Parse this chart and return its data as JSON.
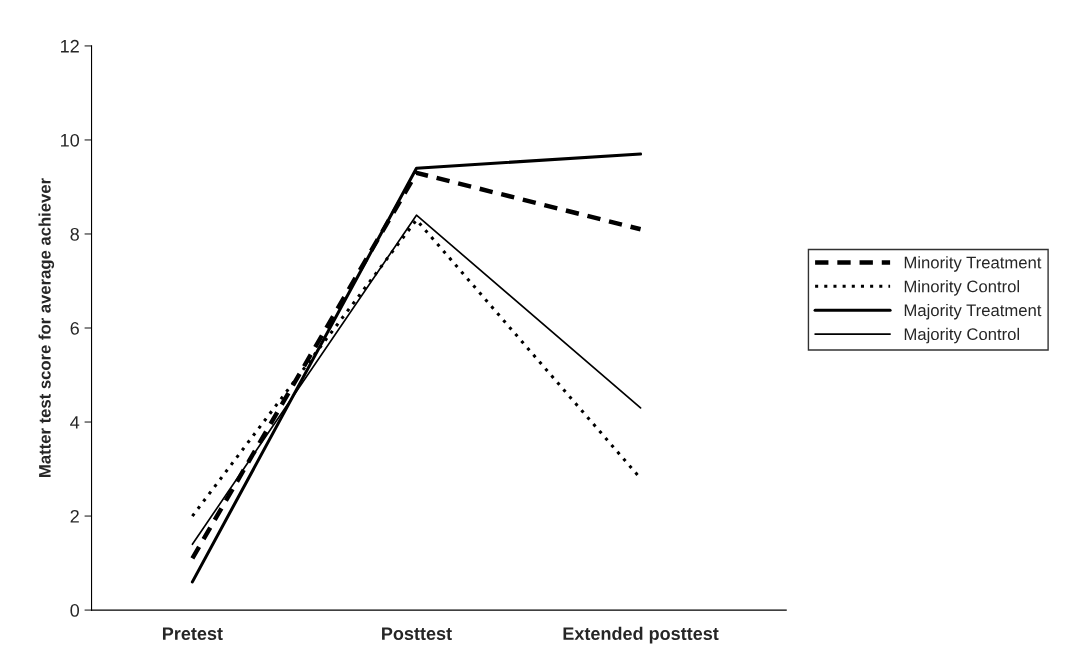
{
  "chart_data": {
    "type": "line",
    "ylabel": "Matter test score for average achiever",
    "categories": [
      "Pretest",
      "Posttest",
      "Extended posttest"
    ],
    "series": [
      {
        "name": "Minority Treatment",
        "color": "#000000",
        "line_style": "dashed",
        "values": [
          1.1,
          9.3,
          8.1
        ]
      },
      {
        "name": "Minority Control",
        "color": "#000000",
        "line_style": "dotted",
        "values": [
          2.0,
          8.3,
          2.8
        ]
      },
      {
        "name": "Majority Treatment",
        "color": "#000000",
        "line_style": "solid",
        "values": [
          0.6,
          9.4,
          9.7
        ]
      },
      {
        "name": "Majority Control",
        "color": "#000000",
        "line_style": "solid",
        "values": [
          1.4,
          8.4,
          4.3
        ]
      }
    ],
    "ylim": [
      0,
      12
    ],
    "yticks": [
      0,
      2,
      4,
      6,
      8,
      10,
      12
    ],
    "grid": false,
    "legend": "right",
    "marker": "none"
  }
}
